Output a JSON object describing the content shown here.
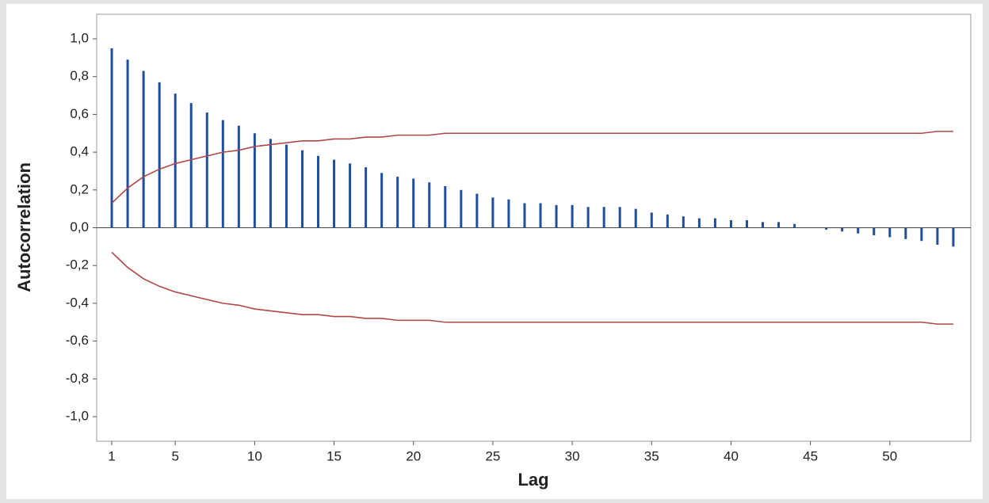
{
  "chart_data": {
    "type": "acf",
    "xlabel": "Lag",
    "ylabel": "Autocorrelation",
    "x": [
      1,
      2,
      3,
      4,
      5,
      6,
      7,
      8,
      9,
      10,
      11,
      12,
      13,
      14,
      15,
      16,
      17,
      18,
      19,
      20,
      21,
      22,
      23,
      24,
      25,
      26,
      27,
      28,
      29,
      30,
      31,
      32,
      33,
      34,
      35,
      36,
      37,
      38,
      39,
      40,
      41,
      42,
      43,
      44,
      45,
      46,
      47,
      48,
      49,
      50,
      51,
      52,
      53,
      54
    ],
    "values": [
      0.95,
      0.89,
      0.83,
      0.77,
      0.71,
      0.66,
      0.61,
      0.57,
      0.54,
      0.5,
      0.47,
      0.44,
      0.41,
      0.38,
      0.36,
      0.34,
      0.32,
      0.29,
      0.27,
      0.26,
      0.24,
      0.22,
      0.2,
      0.18,
      0.16,
      0.15,
      0.13,
      0.13,
      0.12,
      0.12,
      0.11,
      0.11,
      0.11,
      0.1,
      0.08,
      0.07,
      0.06,
      0.05,
      0.05,
      0.04,
      0.04,
      0.03,
      0.03,
      0.02,
      0.0,
      -0.01,
      -0.02,
      -0.03,
      -0.04,
      -0.05,
      -0.06,
      -0.07,
      -0.09,
      -0.1
    ],
    "color": "#1f4e9c",
    "upper_limit": [
      0.13,
      0.21,
      0.27,
      0.31,
      0.34,
      0.36,
      0.38,
      0.4,
      0.41,
      0.43,
      0.44,
      0.45,
      0.46,
      0.46,
      0.47,
      0.47,
      0.48,
      0.48,
      0.49,
      0.49,
      0.49,
      0.5,
      0.5,
      0.5,
      0.5,
      0.5,
      0.5,
      0.5,
      0.5,
      0.5,
      0.5,
      0.5,
      0.5,
      0.5,
      0.5,
      0.5,
      0.5,
      0.5,
      0.5,
      0.5,
      0.5,
      0.5,
      0.5,
      0.5,
      0.5,
      0.5,
      0.5,
      0.5,
      0.5,
      0.5,
      0.5,
      0.5,
      0.51,
      0.51
    ],
    "lower_limit": [
      -0.13,
      -0.21,
      -0.27,
      -0.31,
      -0.34,
      -0.36,
      -0.38,
      -0.4,
      -0.41,
      -0.43,
      -0.44,
      -0.45,
      -0.46,
      -0.46,
      -0.47,
      -0.47,
      -0.48,
      -0.48,
      -0.49,
      -0.49,
      -0.49,
      -0.5,
      -0.5,
      -0.5,
      -0.5,
      -0.5,
      -0.5,
      -0.5,
      -0.5,
      -0.5,
      -0.5,
      -0.5,
      -0.5,
      -0.5,
      -0.5,
      -0.5,
      -0.5,
      -0.5,
      -0.5,
      -0.5,
      -0.5,
      -0.5,
      -0.5,
      -0.5,
      -0.5,
      -0.5,
      -0.5,
      -0.5,
      -0.5,
      -0.5,
      -0.5,
      -0.5,
      -0.51,
      -0.51
    ],
    "limit_color": "#b04848",
    "xlim": [
      0.05,
      55.1
    ],
    "xticks": [
      1,
      5,
      10,
      15,
      20,
      25,
      30,
      35,
      40,
      45,
      50
    ],
    "ylim": [
      -1.13,
      1.13
    ],
    "yticks": [
      {
        "value": -1.0,
        "label": "-1,0"
      },
      {
        "value": -0.8,
        "label": "-0,8"
      },
      {
        "value": -0.6,
        "label": "-0,6"
      },
      {
        "value": -0.4,
        "label": "-0,4"
      },
      {
        "value": -0.2,
        "label": "-0,2"
      },
      {
        "value": 0.0,
        "label": "0,0"
      },
      {
        "value": 0.2,
        "label": "0,2"
      },
      {
        "value": 0.4,
        "label": "0,4"
      },
      {
        "value": 0.6,
        "label": "0,6"
      },
      {
        "value": 0.8,
        "label": "0,8"
      },
      {
        "value": 1.0,
        "label": "1,0"
      }
    ]
  }
}
